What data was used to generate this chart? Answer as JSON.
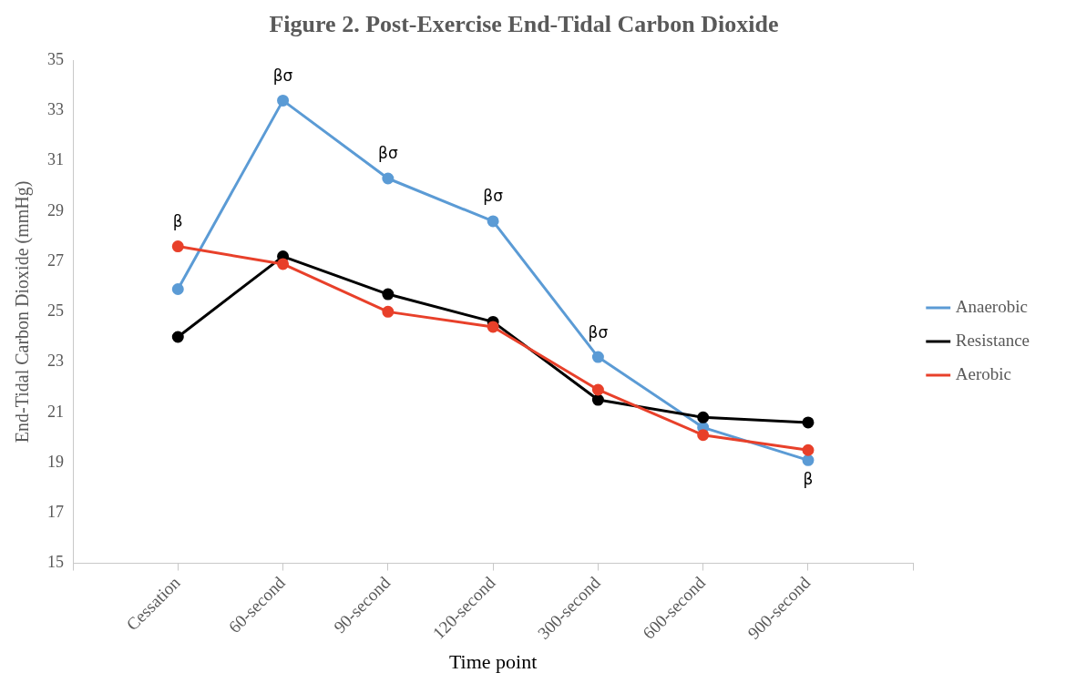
{
  "chart_data": {
    "type": "line",
    "title": "Figure 2. Post-Exercise End-Tidal Carbon Dioxide",
    "xlabel": "Time point",
    "ylabel": "End-Tidal Carbon Dioxide (mmHg)",
    "categories": [
      "Cessation",
      "60-second",
      "90-second",
      "120-second",
      "300-second",
      "600-second",
      "900-second"
    ],
    "series": [
      {
        "name": "Anaerobic",
        "color": "#5b9bd5",
        "values": [
          25.9,
          33.4,
          30.3,
          28.6,
          23.2,
          20.4,
          19.1
        ]
      },
      {
        "name": "Resistance",
        "color": "#000000",
        "values": [
          24.0,
          27.2,
          25.7,
          24.6,
          21.5,
          20.8,
          20.6
        ]
      },
      {
        "name": "Aerobic",
        "color": "#e8402a",
        "values": [
          27.6,
          26.9,
          25.0,
          24.4,
          21.9,
          20.1,
          19.5
        ]
      }
    ],
    "ylim": [
      15,
      35
    ],
    "yticks": [
      15,
      17,
      19,
      21,
      23,
      25,
      27,
      29,
      31,
      33,
      35
    ],
    "grid": false,
    "legend": "right",
    "marker": "circle",
    "line_style": "solid",
    "annotations": [
      {
        "text": "β",
        "x": "Cessation",
        "y": 27.6
      },
      {
        "text": "βσ",
        "x": "60-second",
        "y": 33.4
      },
      {
        "text": "βσ",
        "x": "90-second",
        "y": 30.3
      },
      {
        "text": "βσ",
        "x": "120-second",
        "y": 28.6
      },
      {
        "text": "βσ",
        "x": "300-second",
        "y": 23.2
      },
      {
        "text": "β",
        "x": "900-second",
        "y": 19.1
      }
    ]
  }
}
